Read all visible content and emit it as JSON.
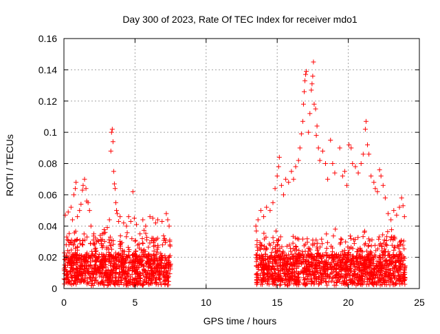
{
  "chart_data": {
    "type": "scatter",
    "title": "Day 300 of 2023, Rate Of TEC Index for receiver mdo1",
    "xlabel": "GPS time / hours",
    "ylabel": "ROTI / TECUs",
    "xlim": [
      0,
      25
    ],
    "ylim": [
      0,
      0.16
    ],
    "x_ticks": [
      0,
      5,
      10,
      15,
      20,
      25
    ],
    "y_ticks": [
      0,
      0.02,
      0.04,
      0.06,
      0.08,
      0.1,
      0.12,
      0.14,
      0.16
    ],
    "x_tick_labels": [
      "0",
      "5",
      "10",
      "15",
      "20",
      "25"
    ],
    "y_tick_labels": [
      "0",
      "0.02",
      "0.04",
      "0.06",
      "0.08",
      "0.1",
      "0.12",
      "0.14",
      "0.16"
    ],
    "grid": true,
    "marker": "+",
    "marker_color": "#ff0000",
    "series": [
      {
        "name": "ROTI",
        "points": [
          [
            0.1,
            0.047
          ],
          [
            0.2,
            0.033
          ],
          [
            0.3,
            0.049
          ],
          [
            0.35,
            0.028
          ],
          [
            0.5,
            0.052
          ],
          [
            0.6,
            0.044
          ],
          [
            0.7,
            0.06
          ],
          [
            0.8,
            0.064
          ],
          [
            0.85,
            0.068
          ],
          [
            0.95,
            0.046
          ],
          [
            1.1,
            0.05
          ],
          [
            1.2,
            0.054
          ],
          [
            1.3,
            0.063
          ],
          [
            1.35,
            0.066
          ],
          [
            1.45,
            0.07
          ],
          [
            1.55,
            0.064
          ],
          [
            1.6,
            0.056
          ],
          [
            1.7,
            0.055
          ],
          [
            1.8,
            0.05
          ],
          [
            1.9,
            0.04
          ],
          [
            2.1,
            0.035
          ],
          [
            2.3,
            0.03
          ],
          [
            2.55,
            0.034
          ],
          [
            2.7,
            0.035
          ],
          [
            2.9,
            0.036
          ],
          [
            3.05,
            0.039
          ],
          [
            3.2,
            0.044
          ],
          [
            3.3,
            0.088
          ],
          [
            3.35,
            0.1
          ],
          [
            3.4,
            0.102
          ],
          [
            3.45,
            0.094
          ],
          [
            3.5,
            0.075
          ],
          [
            3.55,
            0.067
          ],
          [
            3.6,
            0.064
          ],
          [
            3.65,
            0.055
          ],
          [
            3.7,
            0.05
          ],
          [
            3.75,
            0.048
          ],
          [
            3.85,
            0.043
          ],
          [
            3.95,
            0.046
          ],
          [
            4.2,
            0.042
          ],
          [
            4.4,
            0.04
          ],
          [
            4.55,
            0.046
          ],
          [
            4.7,
            0.043
          ],
          [
            4.85,
            0.062
          ],
          [
            4.95,
            0.045
          ],
          [
            5.1,
            0.041
          ],
          [
            5.35,
            0.035
          ],
          [
            5.55,
            0.044
          ],
          [
            5.75,
            0.04
          ],
          [
            6.05,
            0.046
          ],
          [
            6.25,
            0.045
          ],
          [
            6.45,
            0.042
          ],
          [
            6.6,
            0.044
          ],
          [
            6.9,
            0.043
          ],
          [
            7.2,
            0.048
          ],
          [
            7.3,
            0.044
          ],
          [
            7.4,
            0.04
          ],
          [
            13.5,
            0.04
          ],
          [
            13.65,
            0.044
          ],
          [
            13.85,
            0.05
          ],
          [
            14.05,
            0.046
          ],
          [
            14.25,
            0.052
          ],
          [
            14.5,
            0.05
          ],
          [
            14.7,
            0.055
          ],
          [
            14.85,
            0.064
          ],
          [
            15.0,
            0.072
          ],
          [
            15.1,
            0.078
          ],
          [
            15.15,
            0.084
          ],
          [
            15.3,
            0.066
          ],
          [
            15.45,
            0.06
          ],
          [
            15.6,
            0.07
          ],
          [
            15.8,
            0.068
          ],
          [
            16.0,
            0.075
          ],
          [
            16.15,
            0.07
          ],
          [
            16.3,
            0.078
          ],
          [
            16.5,
            0.082
          ],
          [
            16.6,
            0.09
          ],
          [
            16.7,
            0.099
          ],
          [
            16.8,
            0.107
          ],
          [
            16.85,
            0.118
          ],
          [
            16.9,
            0.126
          ],
          [
            16.95,
            0.133
          ],
          [
            17.0,
            0.137
          ],
          [
            17.05,
            0.139
          ],
          [
            17.2,
            0.1
          ],
          [
            17.3,
            0.112
          ],
          [
            17.4,
            0.127
          ],
          [
            17.45,
            0.131
          ],
          [
            17.5,
            0.136
          ],
          [
            17.55,
            0.145
          ],
          [
            17.6,
            0.118
          ],
          [
            17.7,
            0.115
          ],
          [
            17.75,
            0.098
          ],
          [
            17.8,
            0.104
          ],
          [
            17.9,
            0.09
          ],
          [
            18.0,
            0.082
          ],
          [
            18.2,
            0.088
          ],
          [
            18.4,
            0.08
          ],
          [
            18.55,
            0.07
          ],
          [
            18.75,
            0.095
          ],
          [
            18.9,
            0.08
          ],
          [
            19.05,
            0.074
          ],
          [
            19.4,
            0.09
          ],
          [
            19.6,
            0.072
          ],
          [
            19.75,
            0.075
          ],
          [
            19.9,
            0.066
          ],
          [
            20.05,
            0.092
          ],
          [
            20.2,
            0.09
          ],
          [
            20.3,
            0.08
          ],
          [
            20.5,
            0.078
          ],
          [
            20.7,
            0.074
          ],
          [
            20.9,
            0.08
          ],
          [
            21.05,
            0.086
          ],
          [
            21.2,
            0.102
          ],
          [
            21.25,
            0.107
          ],
          [
            21.35,
            0.092
          ],
          [
            21.45,
            0.086
          ],
          [
            21.6,
            0.072
          ],
          [
            21.8,
            0.068
          ],
          [
            21.9,
            0.064
          ],
          [
            22.05,
            0.062
          ],
          [
            22.2,
            0.076
          ],
          [
            22.3,
            0.072
          ],
          [
            22.45,
            0.066
          ],
          [
            22.6,
            0.058
          ],
          [
            22.8,
            0.048
          ],
          [
            23.0,
            0.044
          ],
          [
            23.2,
            0.05
          ],
          [
            23.4,
            0.047
          ],
          [
            23.6,
            0.052
          ],
          [
            23.75,
            0.058
          ],
          [
            23.85,
            0.053
          ],
          [
            23.95,
            0.046
          ]
        ]
      }
    ]
  }
}
